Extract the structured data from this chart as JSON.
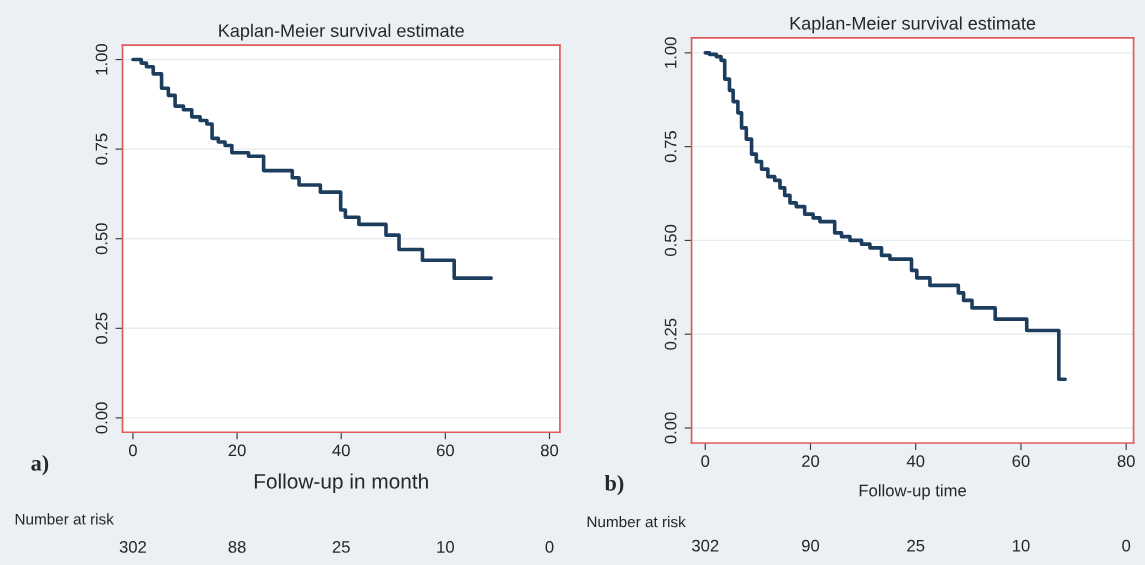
{
  "chart_data": [
    {
      "type": "step",
      "title": "Kaplan-Meier survival estimate",
      "xlabel": "Follow-up in month",
      "series": [
        {
          "color": "#1d3d5e",
          "x": [
            0,
            1.6,
            2.6,
            3.9,
            5.5,
            6.8,
            8.1,
            9.7,
            11.3,
            12.9,
            14.2,
            15.2,
            16.4,
            17.7,
            19.0,
            22.2,
            25.1,
            26.4,
            30.6,
            31.9,
            36.0,
            39.9,
            40.8,
            43.4,
            48.6,
            51.1,
            55.6,
            61.7,
            68.8
          ],
          "values": [
            1.0,
            0.99,
            0.98,
            0.96,
            0.92,
            0.9,
            0.87,
            0.86,
            0.84,
            0.83,
            0.82,
            0.78,
            0.77,
            0.76,
            0.74,
            0.73,
            0.69,
            0.69,
            0.67,
            0.65,
            0.63,
            0.58,
            0.56,
            0.54,
            0.51,
            0.47,
            0.44,
            0.39,
            0.39
          ]
        }
      ],
      "xlim": [
        -2,
        82
      ],
      "xticks": [
        0,
        20,
        40,
        60,
        80
      ],
      "ylim": [
        -0.04,
        1.04
      ],
      "yticks": [
        {
          "value": 0,
          "label": "0.00"
        },
        {
          "value": 0.25,
          "label": "0.25"
        },
        {
          "value": 0.5,
          "label": "0.50"
        },
        {
          "value": 0.75,
          "label": "0.75"
        },
        {
          "value": 1,
          "label": "1.00"
        }
      ],
      "grid": "y",
      "line_style": "solid",
      "annotations": [
        "a)",
        "Number at risk",
        "302",
        "88",
        "25",
        "10",
        "0"
      ]
    },
    {
      "type": "step",
      "title": "Kaplan-Meier survival estimate",
      "xlabel": "Follow-up time",
      "series": [
        {
          "color": "#1d3d5e",
          "x": [
            0,
            0.8,
            2.1,
            3.0,
            3.7,
            4.6,
            5.3,
            6.2,
            6.9,
            7.8,
            8.8,
            9.7,
            10.7,
            11.9,
            13.2,
            14.2,
            15.1,
            16.1,
            17.3,
            18.9,
            20.5,
            21.8,
            24.6,
            25.9,
            27.5,
            29.7,
            31.3,
            33.5,
            35.1,
            39.2,
            40.2,
            42.7,
            48.1,
            49.1,
            50.7,
            55.1,
            61.1,
            67.2,
            68.4
          ],
          "values": [
            1.0,
            0.996,
            0.99,
            0.98,
            0.93,
            0.9,
            0.87,
            0.84,
            0.8,
            0.77,
            0.73,
            0.71,
            0.69,
            0.67,
            0.66,
            0.64,
            0.62,
            0.6,
            0.59,
            0.57,
            0.56,
            0.55,
            0.52,
            0.51,
            0.5,
            0.49,
            0.48,
            0.46,
            0.45,
            0.42,
            0.4,
            0.38,
            0.36,
            0.34,
            0.32,
            0.29,
            0.26,
            0.13,
            0.13
          ]
        }
      ],
      "xlim": [
        -2.6,
        81.4
      ],
      "xticks": [
        0,
        20,
        40,
        60,
        80
      ],
      "ylim": [
        -0.04,
        1.04
      ],
      "yticks": [
        {
          "value": 0,
          "label": "0.00"
        },
        {
          "value": 0.25,
          "label": "0.25"
        },
        {
          "value": 0.5,
          "label": "0.50"
        },
        {
          "value": 0.75,
          "label": "0.75"
        },
        {
          "value": 1,
          "label": "1.00"
        }
      ],
      "grid": "y",
      "line_style": "solid",
      "annotations": [
        "b)",
        "Number at risk",
        "302",
        "90",
        "25",
        "10",
        "0"
      ]
    }
  ]
}
